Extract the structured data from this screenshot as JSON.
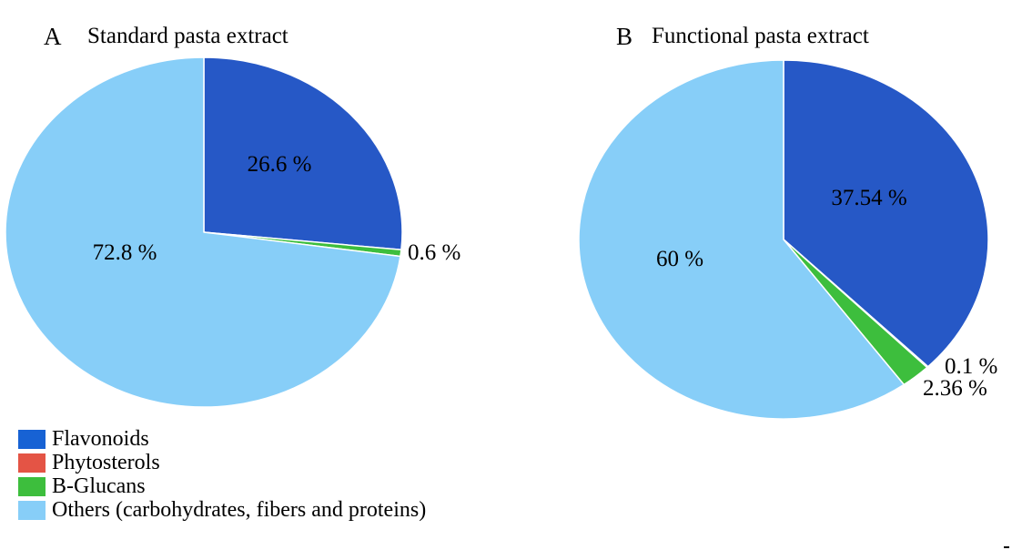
{
  "chart_data": [
    {
      "type": "pie",
      "panel": "A",
      "title": "Standard pasta extract",
      "slices": [
        {
          "name": "Flavonoids",
          "value": 26.6,
          "label": "26.6 %",
          "color": "#2658C6"
        },
        {
          "name": "Phytosterols",
          "value": 0,
          "label": "",
          "color": "#E45445"
        },
        {
          "name": "B-Glucans",
          "value": 0.6,
          "label": "0.6 %",
          "color": "#3DBE3D"
        },
        {
          "name": "Others (carbohydrates, fibers and proteins)",
          "value": 72.8,
          "label": "72.8 %",
          "color": "#87CEF8"
        }
      ]
    },
    {
      "type": "pie",
      "panel": "B",
      "title": "Functional pasta extract",
      "slices": [
        {
          "name": "Flavonoids",
          "value": 37.54,
          "label": "37.54 %",
          "color": "#2658C6"
        },
        {
          "name": "Phytosterols",
          "value": 0.1,
          "label": "0.1 %",
          "color": "#E45445"
        },
        {
          "name": "B-Glucans",
          "value": 2.36,
          "label": "2.36 %",
          "color": "#3DBE3D"
        },
        {
          "name": "Others (carbohydrates, fibers and proteins)",
          "value": 60,
          "label": "60 %",
          "color": "#87CEF8"
        }
      ]
    }
  ],
  "legend": {
    "placement": "bottom-left",
    "items": [
      {
        "label": "Flavonoids",
        "color": "#1762D4",
        "icon": "flavonoids-swatch"
      },
      {
        "label": "Phytosterols",
        "color": "#E45445",
        "icon": "phytosterols-swatch"
      },
      {
        "label": "B-Glucans",
        "color": "#3DBE3D",
        "icon": "b-glucans-swatch"
      },
      {
        "label": "Others (carbohydrates, fibers and proteins)",
        "color": "#87CEF8",
        "icon": "others-swatch"
      }
    ]
  }
}
